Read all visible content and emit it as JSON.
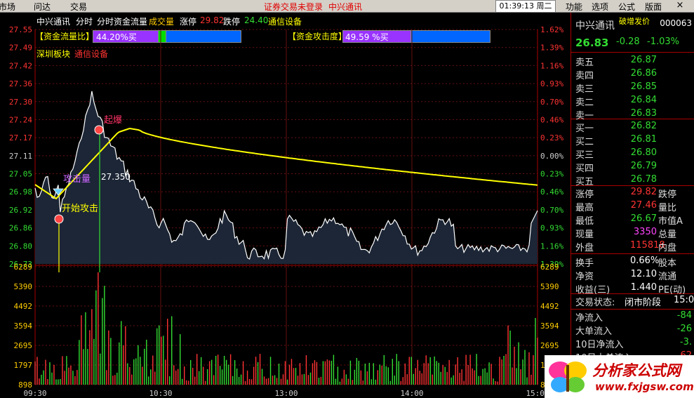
{
  "menu": {
    "items": [
      "市场",
      "问达",
      "交易"
    ],
    "warning": "证券交易未登录",
    "stock_link": "中兴通讯",
    "clock": "01:39:13 周二",
    "right_items": [
      "功能",
      "选项",
      "公式",
      "版面"
    ],
    "close": "×"
  },
  "chart_header": {
    "name": "中兴通讯",
    "tab1": "分时",
    "tab2": "分时资金流量",
    "tab3": "成交量",
    "limit_up_label": "涨停",
    "limit_up": "29.82",
    "limit_down_label": "跌停",
    "limit_down": "24.40",
    "sector": "通信设备"
  },
  "indicators": {
    "flow_label": "【资金流量比】",
    "flow_value": "44.20%买",
    "attack_label": "【资金攻击度】",
    "attack_value": "49.59 %买",
    "block_label": "深圳板块",
    "block_name": "通信设备"
  },
  "annotations": {
    "burst": "起爆",
    "attack": "攻击量",
    "attack_price": "27.350",
    "start": "开始攻击"
  },
  "price_axis": [
    "27.55",
    "27.49",
    "27.42",
    "27.36",
    "27.30",
    "27.24",
    "27.17",
    "27.11",
    "27.05",
    "26.98",
    "26.92",
    "26.86",
    "26.80",
    "26.73"
  ],
  "pct_axis": [
    "1.62%",
    "1.39%",
    "1.16%",
    "0.93%",
    "0.70%",
    "0.46%",
    "0.23%",
    "0.00%",
    "0.23%",
    "0.46%",
    "0.70%",
    "0.93%",
    "1.16%",
    "1.39%"
  ],
  "vol_axis": [
    "6289",
    "5390",
    "4492",
    "3594",
    "2695",
    "1797",
    "898"
  ],
  "time_axis": [
    "09:30",
    "10:30",
    "13:00",
    "14:00",
    "15:00"
  ],
  "colors": {
    "up": "#ff3333",
    "down": "#33dd33",
    "avg": "#ffff00",
    "price": "#ffffff"
  },
  "quote": {
    "name": "中兴通讯",
    "badge": "破增发价",
    "code": "000063",
    "price": "26.83",
    "change": "-0.28",
    "change_pct": "-1.03%",
    "asks": [
      {
        "label": "卖五",
        "price": "26.87"
      },
      {
        "label": "卖四",
        "price": "26.86"
      },
      {
        "label": "卖三",
        "price": "26.85"
      },
      {
        "label": "卖二",
        "price": "26.84"
      },
      {
        "label": "卖一",
        "price": "26.83"
      }
    ],
    "bids": [
      {
        "label": "买一",
        "price": "26.82"
      },
      {
        "label": "买二",
        "price": "26.81"
      },
      {
        "label": "买三",
        "price": "26.80"
      },
      {
        "label": "买四",
        "price": "26.79"
      },
      {
        "label": "买五",
        "price": "26.78"
      }
    ],
    "stats": [
      {
        "label": "涨停",
        "value": "29.82",
        "label2": "跌停"
      },
      {
        "label": "最高",
        "value": "27.46",
        "label2": "量比"
      },
      {
        "label": "最低",
        "value": "26.67",
        "label2": "市值A"
      },
      {
        "label": "现量",
        "value": "3350",
        "label2": "总量"
      },
      {
        "label": "外盘",
        "value": "115818",
        "label2": "内盘"
      }
    ],
    "stats2": [
      {
        "label": "换手",
        "value": "0.66%",
        "label2": "股本"
      },
      {
        "label": "净资",
        "value": "12.10",
        "label2": "流通"
      },
      {
        "label": "收益(三)",
        "value": "1.440",
        "label2": "PE(动)"
      }
    ],
    "status_label": "交易状态:",
    "status_value": "闭市阶段",
    "status_time": "15:0",
    "flows": [
      {
        "label": "净流入",
        "value": "-84"
      },
      {
        "label": "大单流入",
        "value": "-26"
      },
      {
        "label": "10日净流入",
        "value": "-3."
      },
      {
        "label": "10日大单流入",
        "value": "62"
      }
    ]
  },
  "logo": {
    "text": "分析家公式网",
    "url": "www.fxjgsw.com"
  }
}
